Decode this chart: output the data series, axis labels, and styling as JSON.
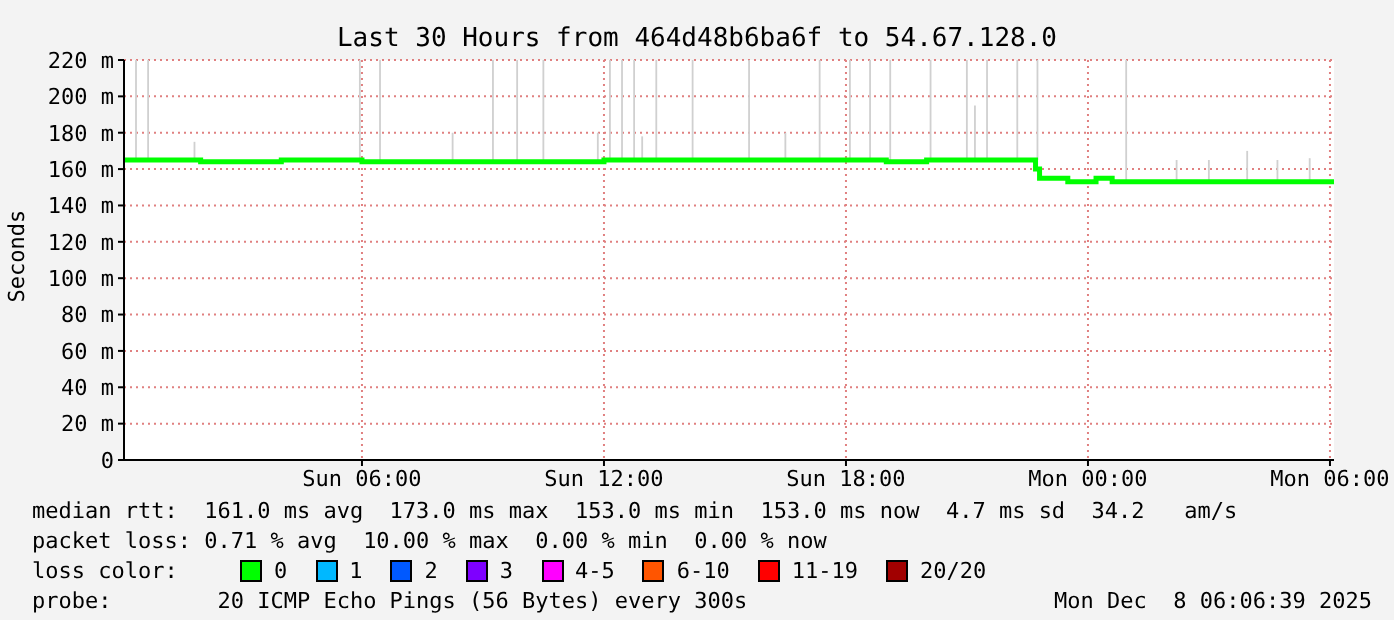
{
  "chart_data": {
    "type": "step",
    "title": "Last 30 Hours from 464d48b6ba6f to 54.67.128.0",
    "ylabel": "Seconds",
    "xlim": [
      "2025-12-07T00:06",
      "2025-12-08T06:06"
    ],
    "xticks": [
      {
        "value": "2025-12-07T06:00",
        "label": "Sun 06:00"
      },
      {
        "value": "2025-12-07T12:00",
        "label": "Sun 12:00"
      },
      {
        "value": "2025-12-07T18:00",
        "label": "Sun 18:00"
      },
      {
        "value": "2025-12-08T00:00",
        "label": "Mon 00:00"
      },
      {
        "value": "2025-12-08T06:00",
        "label": "Mon 06:00"
      }
    ],
    "ylim": [
      0,
      220
    ],
    "yticks": [
      0,
      {
        "value": 20,
        "label": "20 m"
      },
      {
        "value": 40,
        "label": "40 m"
      },
      {
        "value": 60,
        "label": "60 m"
      },
      {
        "value": 80,
        "label": "80 m"
      },
      {
        "value": 100,
        "label": "100 m"
      },
      {
        "value": 120,
        "label": "120 m"
      },
      {
        "value": 140,
        "label": "140 m"
      },
      {
        "value": 160,
        "label": "160 m"
      },
      {
        "value": 180,
        "label": "180 m"
      },
      {
        "value": 200,
        "label": "200 m"
      },
      {
        "value": 220,
        "label": "220 m"
      }
    ],
    "grid": true,
    "legend": "bottom",
    "legend_title": "loss color:",
    "series": [
      {
        "type": "bar",
        "color": "#d0d0d0",
        "x": [
          "2025-12-07T00:24",
          "2025-12-07T00:42",
          "2025-12-07T01:51",
          "2025-12-07T05:57",
          "2025-12-07T06:27",
          "2025-12-07T08:15",
          "2025-12-07T09:15",
          "2025-12-07T09:51",
          "2025-12-07T10:30",
          "2025-12-07T11:51",
          "2025-12-07T12:09",
          "2025-12-07T12:27",
          "2025-12-07T12:45",
          "2025-12-07T12:57",
          "2025-12-07T13:18",
          "2025-12-07T14:12",
          "2025-12-07T15:36",
          "2025-12-07T16:30",
          "2025-12-07T17:21",
          "2025-12-07T18:06",
          "2025-12-07T18:36",
          "2025-12-07T19:06",
          "2025-12-07T20:06",
          "2025-12-07T21:00",
          "2025-12-07T21:12",
          "2025-12-07T21:30",
          "2025-12-07T22:15",
          "2025-12-07T22:45",
          "2025-12-08T00:57",
          "2025-12-08T02:12",
          "2025-12-08T03:00",
          "2025-12-08T03:57",
          "2025-12-08T04:42",
          "2025-12-08T05:30"
        ],
        "base": [
          165,
          165,
          165,
          165,
          165,
          165,
          165,
          165,
          165,
          165,
          165,
          165,
          165,
          165,
          165,
          165,
          165,
          165,
          165,
          165,
          165,
          165,
          165,
          165,
          165,
          165,
          165,
          165,
          153,
          153,
          153,
          153,
          153,
          153
        ],
        "values": [
          55,
          55,
          10,
          55,
          55,
          15,
          55,
          55,
          55,
          15,
          55,
          55,
          55,
          13,
          55,
          55,
          55,
          15,
          55,
          55,
          55,
          55,
          55,
          55,
          30,
          55,
          55,
          55,
          67,
          12,
          12,
          17,
          12,
          13
        ]
      },
      {
        "name": "0",
        "color": "#00ff00",
        "x": [
          "2025-12-07T00:06",
          "2025-12-07T02:00",
          "2025-12-07T04:00",
          "2025-12-07T06:00",
          "2025-12-07T09:00",
          "2025-12-07T12:00",
          "2025-12-07T16:00",
          "2025-12-07T19:00",
          "2025-12-07T20:00",
          "2025-12-07T22:36",
          "2025-12-07T22:42",
          "2025-12-07T22:48",
          "2025-12-07T23:30",
          "2025-12-08T00:06",
          "2025-12-08T00:12",
          "2025-12-08T00:30",
          "2025-12-08T00:36",
          "2025-12-08T06:06"
        ],
        "values": [
          165,
          164,
          165,
          164,
          164,
          165,
          165,
          164,
          165,
          165,
          160,
          155,
          153,
          153,
          155,
          155,
          153,
          153
        ]
      },
      {
        "name": "1",
        "color": "#00b8ff"
      },
      {
        "name": "2",
        "color": "#0059ff"
      },
      {
        "name": "3",
        "color": "#7e00ff"
      },
      {
        "name": "4-5",
        "color": "#ff00ff"
      },
      {
        "name": "6-10",
        "color": "#ff5500"
      },
      {
        "name": "11-19",
        "color": "#ff0000"
      },
      {
        "name": "20/20",
        "color": "#a10000"
      }
    ],
    "annotations": [
      "median rtt:  161.0 ms avg  173.0 ms max  153.0 ms min  153.0 ms now  4.7 ms sd  34.2   am/s",
      "packet loss: 0.71 % avg  10.00 % max  0.00 % min  0.00 % now",
      "probe:        20 ICMP Echo Pings (56 Bytes) every 300s",
      "Mon Dec  8 06:06:39 2025"
    ]
  }
}
